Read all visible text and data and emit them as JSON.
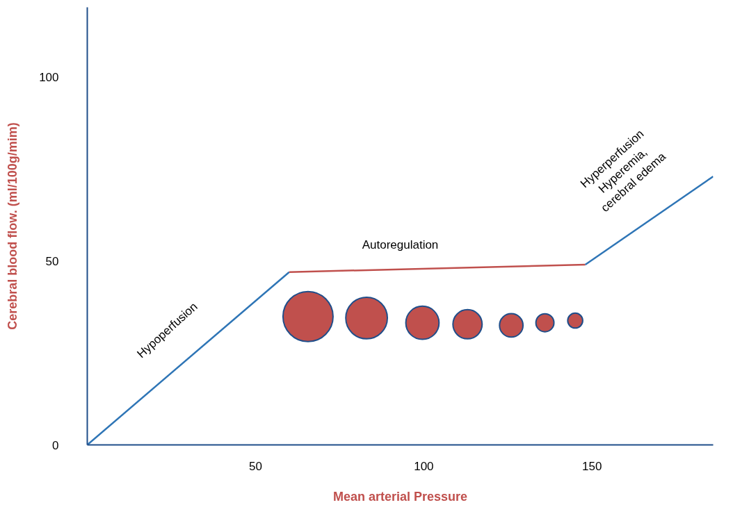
{
  "chart_data": {
    "type": "line",
    "xlabel": "Mean arterial Pressure",
    "ylabel": "Cerebral blood flow. (ml/100g/mim)",
    "xlim": [
      0,
      186
    ],
    "ylim": [
      0,
      119
    ],
    "xticks": [
      50,
      100,
      150
    ],
    "yticks": [
      0,
      50,
      100
    ],
    "grid": false,
    "line_style": "solid",
    "annotations": [
      "Hypoperfusion",
      "Autoregulation",
      "Hyperperfusion\nHyperemia,\ncerebral edema"
    ],
    "series": [
      {
        "color": "#2e75b6",
        "x": [
          0,
          60
        ],
        "values": [
          0,
          47
        ]
      },
      {
        "color": "#c0504d",
        "x": [
          60,
          148
        ],
        "values": [
          47,
          49
        ]
      },
      {
        "color": "#2e75b6",
        "x": [
          148,
          186
        ],
        "values": [
          49,
          73
        ]
      },
      {
        "type": "bubble",
        "color": "#c0504d",
        "x": [
          65.6,
          83,
          99.6,
          113,
          126,
          136,
          145
        ],
        "values": [
          34.9,
          34.5,
          33.2,
          32.8,
          32.5,
          33.2,
          33.8
        ],
        "sizes": [
          1,
          0.69,
          0.44,
          0.34,
          0.22,
          0.13,
          0.09
        ]
      }
    ]
  }
}
